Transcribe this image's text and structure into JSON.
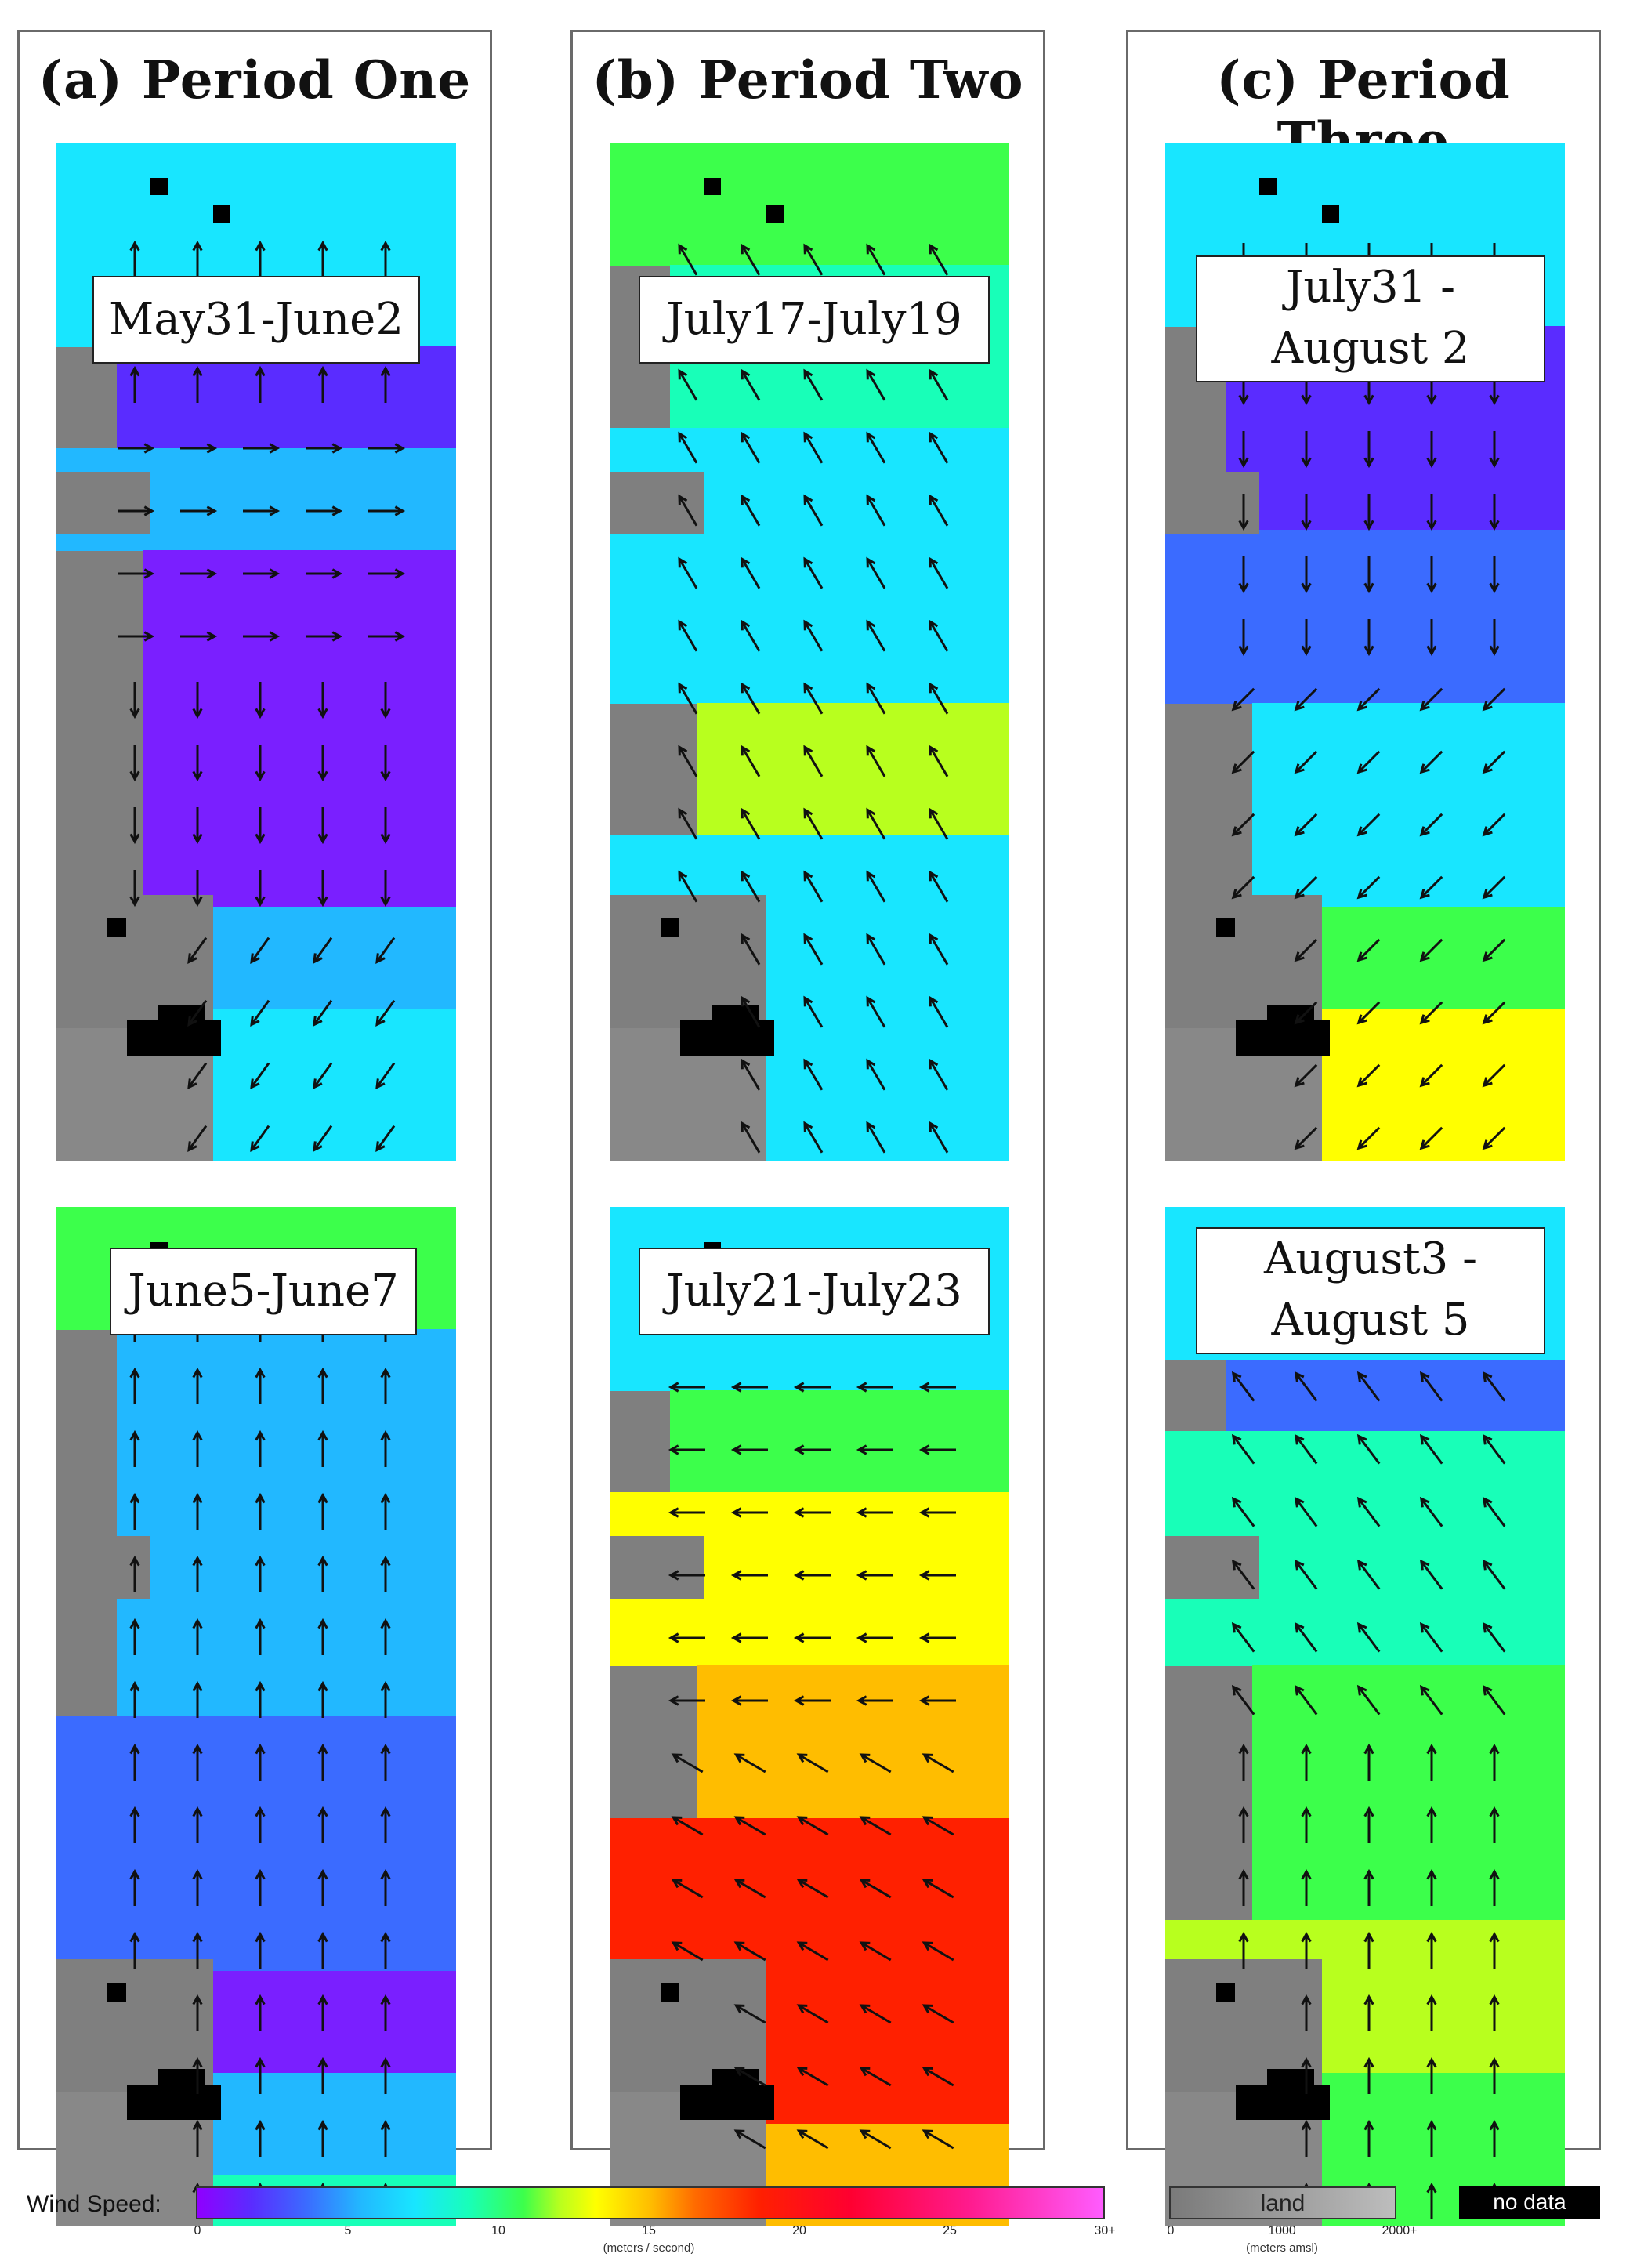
{
  "panels": [
    {
      "title": "(a) Period One",
      "maps": [
        {
          "label": "May31-June2",
          "dir": "mix1"
        },
        {
          "label": "June5-June7",
          "dir": "north"
        }
      ]
    },
    {
      "title": "(b) Period Two",
      "maps": [
        {
          "label": "July17-July19",
          "dir": "northwest"
        },
        {
          "label": "July21-July23",
          "dir": "west"
        }
      ]
    },
    {
      "title": "(c) Period Three",
      "maps": [
        {
          "label": "July31 - August 2",
          "dir": "southwest"
        },
        {
          "label": "August3 - August 5",
          "dir": "northwest"
        }
      ]
    }
  ],
  "legend": {
    "title": "Wind Speed:",
    "ticks": [
      "0",
      "5",
      "10",
      "15",
      "20",
      "25",
      "30+"
    ],
    "units": "(meters / second)",
    "land_label": "land",
    "land_ticks": [
      "0",
      "1000",
      "2000+"
    ],
    "land_units": "(meters amsl)",
    "nodata_label": "no data"
  }
}
